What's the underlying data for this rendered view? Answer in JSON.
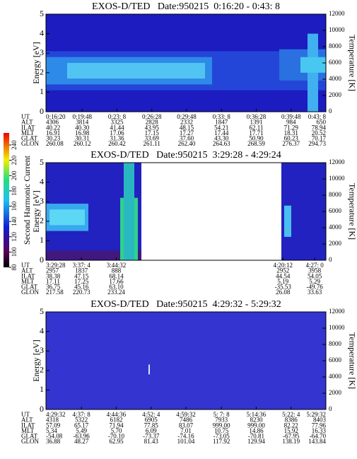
{
  "chart_data": [
    {
      "type": "spectrogram",
      "title": "EXOS-D/TED   Date:950215  0:16:20 - 0:43: 8",
      "y_label": "Energy [eV]",
      "y2_label": "Temperature [K]",
      "ylim": [
        0,
        5
      ],
      "yticks": [
        0,
        1,
        2,
        3,
        4,
        5
      ],
      "y2lim": [
        0,
        12000
      ],
      "y2ticks": [
        0,
        2000,
        4000,
        6000,
        8000,
        10000,
        12000
      ],
      "table": {
        "rows": [
          {
            "name": "UT",
            "values": [
              "0:16:20",
              "0:19:48",
              "0:23: 8",
              "0:26:28",
              "0:29:48",
              "0:33: 8",
              "0:36:28",
              "0:39:48",
              "0:43: 8"
            ]
          },
          {
            "name": "ALT",
            "values": [
              "4306",
              "3814",
              "3325",
              "2828",
              "2332",
              "1847",
              "1391",
              "984",
              "650"
            ]
          },
          {
            "name": "ILAT",
            "values": [
              "40.22",
              "40.30",
              "41.44",
              "43.95",
              "48.15",
              "54.21",
              "62.11",
              "71.29",
              "78.94"
            ]
          },
          {
            "name": "MLT",
            "values": [
              "16.91",
              "16.98",
              "17.06",
              "17.15",
              "17.27",
              "17.44",
              "17.71",
              "18.31",
              "20.52"
            ]
          },
          {
            "name": "GLAT",
            "values": [
              "30.23",
              "30.31",
              "31.36",
              "33.69",
              "37.60",
              "43.30",
              "50.90",
              "60.23",
              "70.17"
            ]
          },
          {
            "name": "GLON",
            "values": [
              "260.08",
              "260.12",
              "260.42",
              "261.11",
              "262.40",
              "264.63",
              "268.59",
              "276.37",
              "294.73"
            ]
          }
        ]
      }
    },
    {
      "type": "spectrogram",
      "title": "EXOS-D/TED   Date:950215  3:29:28 - 4:29:24",
      "y_label": "Energy [eV]",
      "y2_label": "Temperature [K]",
      "ylim": [
        0,
        5
      ],
      "yticks": [
        0,
        1,
        2,
        3,
        4,
        5
      ],
      "y2lim": [
        0,
        12000
      ],
      "y2ticks": [
        0,
        2000,
        4000,
        6000,
        8000,
        10000,
        12000
      ],
      "table": {
        "rows": [
          {
            "name": "UT",
            "values": [
              "3:29:28",
              "3:37: 4",
              "3:44:32",
              "4:20:12",
              "4:27: 0"
            ]
          },
          {
            "name": "ALT",
            "values": [
              "2957",
              "1837",
              "888",
              "2952",
              "3958"
            ]
          },
          {
            "name": "ILAT",
            "values": [
              "38.38",
              "47.15",
              "68.14",
              "44.54",
              "54.05"
            ]
          },
          {
            "name": "MLT",
            "values": [
              "17.11",
              "17.25",
              "17.66",
              "5.19",
              "5.29"
            ]
          },
          {
            "name": "GLAT",
            "values": [
              "36.75",
              "45.16",
              "63.10",
              "-35.53",
              "-49.76"
            ]
          },
          {
            "name": "GLON",
            "values": [
              "217.58",
              "220.73",
              "233.24",
              "26.08",
              "33.63"
            ]
          }
        ]
      }
    },
    {
      "type": "spectrogram",
      "title": "EXOS-D/TED   Date:950215  4:29:32 - 5:29:32",
      "y_label": "Energy [eV]",
      "y2_label": "Temperature [K]",
      "ylim": [
        0,
        5
      ],
      "yticks": [
        0,
        1,
        2,
        3,
        4,
        5
      ],
      "y2lim": [
        0,
        12000
      ],
      "y2ticks": [
        0,
        2000,
        4000,
        6000,
        8000,
        10000,
        12000
      ],
      "table": {
        "rows": [
          {
            "name": "UT",
            "values": [
              "4:29:32",
              "4:37: 8",
              "4:44:36",
              "4:52: 4",
              "4:59:32",
              "5: 7: 8",
              "5:14:36",
              "5:22: 4",
              "5:29:32"
            ]
          },
          {
            "name": "ALT",
            "values": [
              "4318",
              "5322",
              "6182",
              "6905",
              "7486",
              "7933",
              "8230",
              "8386",
              "8403"
            ]
          },
          {
            "name": "ILAT",
            "values": [
              "57.09",
              "65.17",
              "71.94",
              "77.85",
              "83.07",
              "999.00",
              "999.00",
              "82.22",
              "77.96"
            ]
          },
          {
            "name": "MLT",
            "values": [
              "5.34",
              "5.49",
              "5.70",
              "6.09",
              "7.01",
              "10.75",
              "14.86",
              "15.92",
              "16.33"
            ]
          },
          {
            "name": "GLAT",
            "values": [
              "-54.08",
              "-63.96",
              "-70.10",
              "-73.37",
              "-74.16",
              "-73.05",
              "-70.81",
              "-67.95",
              "-64.70"
            ]
          },
          {
            "name": "GLON",
            "values": [
              "36.88",
              "48.27",
              "62.95",
              "81.43",
              "101.04",
              "117.92",
              "129.94",
              "138.19",
              "143.84"
            ]
          }
        ]
      }
    }
  ],
  "colorbar": {
    "label": "Second Harmonic Current",
    "ticks": [
      80,
      100,
      120,
      140,
      160,
      180,
      200,
      220,
      240
    ]
  }
}
